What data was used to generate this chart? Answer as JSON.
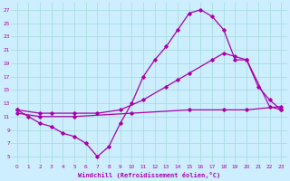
{
  "xlabel": "Windchill (Refroidissement éolien,°C)",
  "xlim": [
    -0.5,
    23.5
  ],
  "ylim": [
    4,
    28
  ],
  "xticks": [
    0,
    1,
    2,
    3,
    4,
    5,
    6,
    7,
    8,
    9,
    10,
    11,
    12,
    13,
    14,
    15,
    16,
    17,
    18,
    19,
    20,
    21,
    22,
    23
  ],
  "yticks": [
    5,
    7,
    9,
    11,
    13,
    15,
    17,
    19,
    21,
    23,
    25,
    27
  ],
  "bg_color": "#cceeff",
  "grid_color": "#aadddd",
  "line_color": "#aa00aa",
  "line1_x": [
    0,
    1,
    2,
    3,
    4,
    5,
    6,
    7,
    8,
    9,
    10,
    11,
    12,
    13,
    14,
    15,
    16,
    17,
    18,
    19,
    20,
    21,
    22,
    23
  ],
  "line1_y": [
    12.0,
    11.0,
    10.0,
    9.5,
    8.5,
    8.0,
    7.0,
    5.0,
    6.5,
    10.0,
    13.0,
    17.0,
    19.5,
    21.5,
    24.0,
    26.5,
    27.0,
    26.0,
    24.0,
    19.5,
    19.5,
    15.5,
    13.5,
    12.0
  ],
  "line2_x": [
    0,
    2,
    3,
    5,
    7,
    9,
    11,
    13,
    14,
    15,
    17,
    18,
    19,
    20,
    22,
    23
  ],
  "line2_y": [
    12.0,
    11.5,
    11.5,
    11.5,
    11.5,
    12.0,
    13.5,
    15.5,
    16.5,
    17.5,
    19.5,
    20.5,
    20.0,
    19.5,
    12.5,
    12.0
  ],
  "line3_x": [
    0,
    2,
    5,
    10,
    15,
    18,
    20,
    23
  ],
  "line3_y": [
    11.5,
    11.0,
    11.0,
    11.5,
    12.0,
    12.0,
    12.0,
    12.5
  ]
}
